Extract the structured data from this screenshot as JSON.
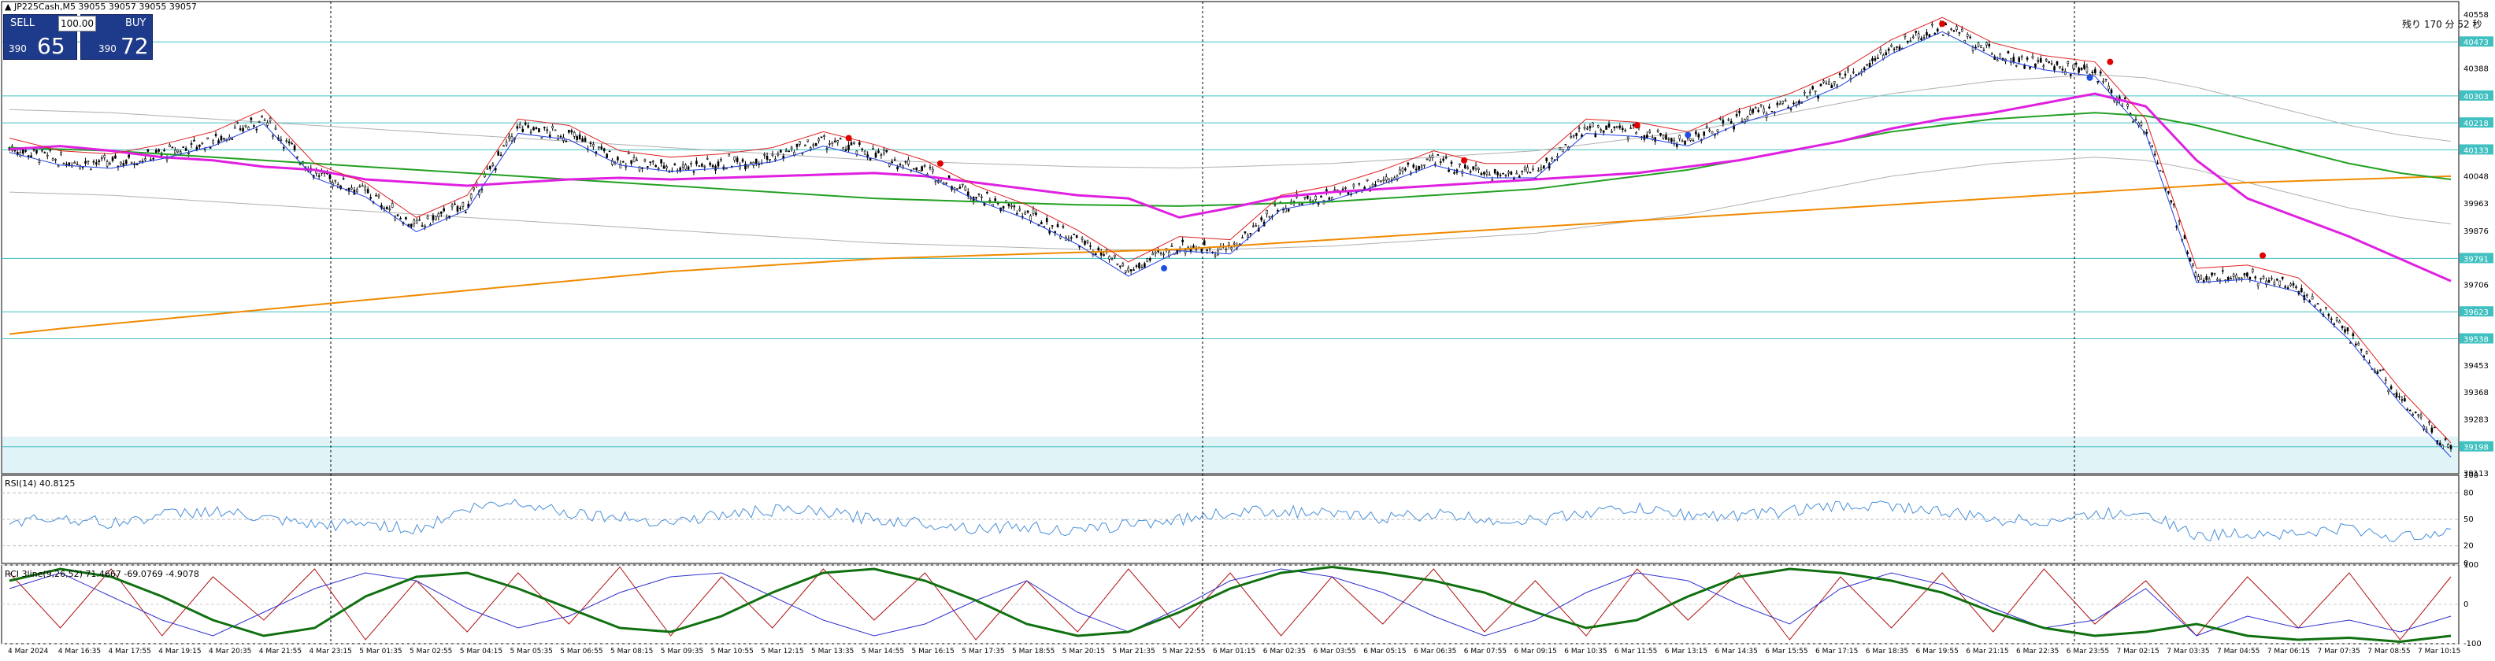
{
  "symbol_title": "▲ JP225Cash,M5  39055 39057 39055 39057",
  "trade_panel": {
    "sell_label": "SELL",
    "buy_label": "BUY",
    "lot_value": "100.00",
    "sell_price_small": "390",
    "sell_price_big": "65",
    "buy_price_small": "390",
    "buy_price_big": "72"
  },
  "countdown_text": "残り 170 分 52 秒",
  "rsi_title": "RSI(14) 40.8125",
  "stoch_title": "RCI 3line(9,26,52) 71.4667 -69.0769 -4.9078",
  "colors": {
    "background": "#ffffff",
    "candle": "#000000",
    "ma_magenta": "#e020e0",
    "ma_green": "#22a022",
    "ma_orange": "#f08a00",
    "ma_red": "#e02020",
    "ma_blue": "#2040e0",
    "gray_band": "#b0b0b0",
    "hline": "#40c0c0",
    "rsi_line": "#4a90d9",
    "rci_green": "#107010",
    "rci_blue": "#3030d0",
    "rci_red": "#b01010",
    "price_tag_bg": "#40c0c0",
    "signal_red": "#e00000",
    "signal_blue": "#2050e0"
  },
  "chart_data": {
    "type": "line",
    "title": "",
    "y_axis_ticks": [
      "40558",
      "40473",
      "40388",
      "40303",
      "40218",
      "40133",
      "40048",
      "39963",
      "39876",
      "39791",
      "39706",
      "39623",
      "39538",
      "39453",
      "39368",
      "39283",
      "39198",
      "39113"
    ],
    "price_tags": [
      "40473",
      "40303",
      "40218",
      "40133",
      "39791",
      "39623",
      "39538",
      "39198"
    ],
    "x_tick_labels": [
      "4 Mar 2024",
      "4 Mar 16:35",
      "4 Mar 17:55",
      "4 Mar 19:15",
      "4 Mar 20:35",
      "4 Mar 21:55",
      "4 Mar 23:15",
      "5 Mar 01:35",
      "5 Mar 02:55",
      "5 Mar 04:15",
      "5 Mar 05:35",
      "5 Mar 06:55",
      "5 Mar 08:15",
      "5 Mar 09:35",
      "5 Mar 10:55",
      "5 Mar 12:15",
      "5 Mar 13:35",
      "5 Mar 14:55",
      "5 Mar 16:15",
      "5 Mar 17:35",
      "5 Mar 18:55",
      "5 Mar 20:15",
      "5 Mar 21:35",
      "5 Mar 22:55",
      "6 Mar 01:15",
      "6 Mar 02:35",
      "6 Mar 03:55",
      "6 Mar 05:15",
      "6 Mar 06:35",
      "6 Mar 07:55",
      "6 Mar 09:15",
      "6 Mar 10:35",
      "6 Mar 11:55",
      "6 Mar 13:15",
      "6 Mar 14:35",
      "6 Mar 15:55",
      "6 Mar 17:15",
      "6 Mar 18:35",
      "6 Mar 19:55",
      "6 Mar 21:15",
      "6 Mar 22:35",
      "6 Mar 23:55",
      "7 Mar 02:15",
      "7 Mar 03:35",
      "7 Mar 04:55",
      "7 Mar 06:15",
      "7 Mar 07:35",
      "7 Mar 08:55",
      "7 Mar 10:15"
    ],
    "price_series": [
      {
        "x": 0,
        "y": 40140
      },
      {
        "x": 1,
        "y": 40100
      },
      {
        "x": 2,
        "y": 40090
      },
      {
        "x": 3,
        "y": 40120
      },
      {
        "x": 4,
        "y": 40160
      },
      {
        "x": 5,
        "y": 40230
      },
      {
        "x": 6,
        "y": 40060
      },
      {
        "x": 7,
        "y": 40000
      },
      {
        "x": 8,
        "y": 39890
      },
      {
        "x": 9,
        "y": 39960
      },
      {
        "x": 10,
        "y": 40200
      },
      {
        "x": 11,
        "y": 40180
      },
      {
        "x": 12,
        "y": 40100
      },
      {
        "x": 13,
        "y": 40080
      },
      {
        "x": 14,
        "y": 40090
      },
      {
        "x": 15,
        "y": 40110
      },
      {
        "x": 16,
        "y": 40160
      },
      {
        "x": 17,
        "y": 40120
      },
      {
        "x": 18,
        "y": 40070
      },
      {
        "x": 19,
        "y": 39990
      },
      {
        "x": 20,
        "y": 39930
      },
      {
        "x": 21,
        "y": 39850
      },
      {
        "x": 22,
        "y": 39750
      },
      {
        "x": 23,
        "y": 39830
      },
      {
        "x": 24,
        "y": 39820
      },
      {
        "x": 25,
        "y": 39960
      },
      {
        "x": 26,
        "y": 39990
      },
      {
        "x": 27,
        "y": 40040
      },
      {
        "x": 28,
        "y": 40100
      },
      {
        "x": 29,
        "y": 40060
      },
      {
        "x": 30,
        "y": 40060
      },
      {
        "x": 31,
        "y": 40200
      },
      {
        "x": 32,
        "y": 40190
      },
      {
        "x": 33,
        "y": 40160
      },
      {
        "x": 34,
        "y": 40230
      },
      {
        "x": 35,
        "y": 40280
      },
      {
        "x": 36,
        "y": 40350
      },
      {
        "x": 37,
        "y": 40450
      },
      {
        "x": 38,
        "y": 40520
      },
      {
        "x": 39,
        "y": 40440
      },
      {
        "x": 40,
        "y": 40400
      },
      {
        "x": 41,
        "y": 40380
      },
      {
        "x": 42,
        "y": 40200
      },
      {
        "x": 43,
        "y": 39730
      },
      {
        "x": 44,
        "y": 39740
      },
      {
        "x": 45,
        "y": 39700
      },
      {
        "x": 46,
        "y": 39550
      },
      {
        "x": 47,
        "y": 39350
      },
      {
        "x": 48,
        "y": 39180
      }
    ],
    "ylim": [
      39113,
      40600
    ],
    "rsi_ylim": [
      0,
      100
    ],
    "rsi_ticks": [
      "100",
      "80",
      "50",
      "20",
      "0"
    ],
    "rsi_values": [
      48,
      52,
      45,
      55,
      60,
      50,
      42,
      46,
      38,
      62,
      70,
      58,
      52,
      47,
      55,
      60,
      58,
      50,
      46,
      40,
      42,
      35,
      45,
      50,
      58,
      60,
      55,
      52,
      56,
      50,
      48,
      58,
      62,
      55,
      54,
      60,
      65,
      66,
      58,
      50,
      48,
      55,
      60,
      30,
      35,
      33,
      40,
      28,
      40
    ],
    "rci_ylim": [
      -100,
      100
    ],
    "rci_ticks": [
      "100",
      "0",
      "-100"
    ],
    "rci_green": [
      60,
      90,
      70,
      20,
      -40,
      -80,
      -60,
      20,
      70,
      80,
      40,
      -10,
      -60,
      -70,
      -30,
      30,
      80,
      90,
      60,
      10,
      -50,
      -80,
      -70,
      -20,
      40,
      80,
      95,
      80,
      60,
      30,
      -20,
      -60,
      -40,
      20,
      70,
      90,
      80,
      60,
      30,
      -20,
      -60,
      -80,
      -70,
      -50,
      -80,
      -90,
      -85,
      -95,
      -80
    ],
    "rci_blue": [
      40,
      80,
      20,
      -40,
      -80,
      -20,
      40,
      80,
      60,
      -10,
      -60,
      -30,
      30,
      70,
      80,
      20,
      -40,
      -80,
      -50,
      10,
      60,
      -20,
      -70,
      -10,
      60,
      90,
      70,
      30,
      -30,
      -80,
      -40,
      30,
      80,
      60,
      0,
      -50,
      40,
      80,
      50,
      -10,
      -60,
      -40,
      40,
      -80,
      -30,
      -60,
      -40,
      -70,
      -30
    ],
    "rci_red": [
      80,
      -60,
      90,
      -80,
      70,
      -40,
      90,
      -90,
      60,
      -70,
      80,
      -50,
      95,
      -80,
      70,
      -60,
      90,
      -40,
      80,
      -90,
      60,
      -70,
      90,
      -60,
      80,
      -80,
      70,
      -50,
      90,
      -70,
      60,
      -80,
      90,
      -40,
      80,
      -90,
      70,
      -60,
      80,
      -70,
      90,
      -50,
      60,
      -80,
      70,
      -60,
      80,
      -90,
      70
    ],
    "ma_magenta": [
      40135,
      40145,
      40130,
      40110,
      40100,
      40080,
      40070,
      40040,
      40030,
      40020,
      40030,
      40040,
      40045,
      40040,
      40045,
      40050,
      40055,
      40060,
      40050,
      40030,
      40010,
      39990,
      39980,
      39920,
      39950,
      39985,
      40000,
      40010,
      40020,
      40030,
      40040,
      40050,
      40060,
      40080,
      40100,
      40130,
      40160,
      40200,
      40230,
      40250,
      40280,
      40310,
      40270,
      40100,
      39980,
      39920,
      39860,
      39790,
      39720
    ],
    "ma_green": [
      40140,
      40135,
      40130,
      40120,
      40110,
      40100,
      40090,
      40080,
      40070,
      40060,
      40050,
      40040,
      40030,
      40020,
      40010,
      40000,
      39990,
      39980,
      39975,
      39970,
      39965,
      39960,
      39958,
      39956,
      39960,
      39965,
      39970,
      39980,
      39990,
      40000,
      40010,
      40030,
      40050,
      40070,
      40100,
      40130,
      40160,
      40190,
      40210,
      40230,
      40240,
      40250,
      40240,
      40210,
      40170,
      40130,
      40090,
      40060,
      40040
    ],
    "ma_orange": [
      39553,
      39570,
      39585,
      39600,
      39615,
      39630,
      39645,
      39660,
      39675,
      39690,
      39705,
      39720,
      39735,
      39750,
      39760,
      39770,
      39780,
      39790,
      39795,
      39800,
      39805,
      39810,
      39815,
      39820,
      39830,
      39840,
      39850,
      39860,
      39870,
      39880,
      39890,
      39900,
      39910,
      39920,
      39930,
      39940,
      39950,
      39960,
      39970,
      39980,
      39990,
      40000,
      40010,
      40020,
      40030,
      40035,
      40040,
      40045,
      40050
    ],
    "signals_red": [
      {
        "x": 16.5,
        "y": 40170
      },
      {
        "x": 18.3,
        "y": 40090
      },
      {
        "x": 28.6,
        "y": 40100
      },
      {
        "x": 32,
        "y": 40210
      },
      {
        "x": 38,
        "y": 40530
      },
      {
        "x": 41.3,
        "y": 40410
      },
      {
        "x": 44.3,
        "y": 39800
      }
    ],
    "signals_blue": [
      {
        "x": 22.7,
        "y": 39760
      },
      {
        "x": 33,
        "y": 40180
      },
      {
        "x": 40.9,
        "y": 40360
      }
    ]
  }
}
